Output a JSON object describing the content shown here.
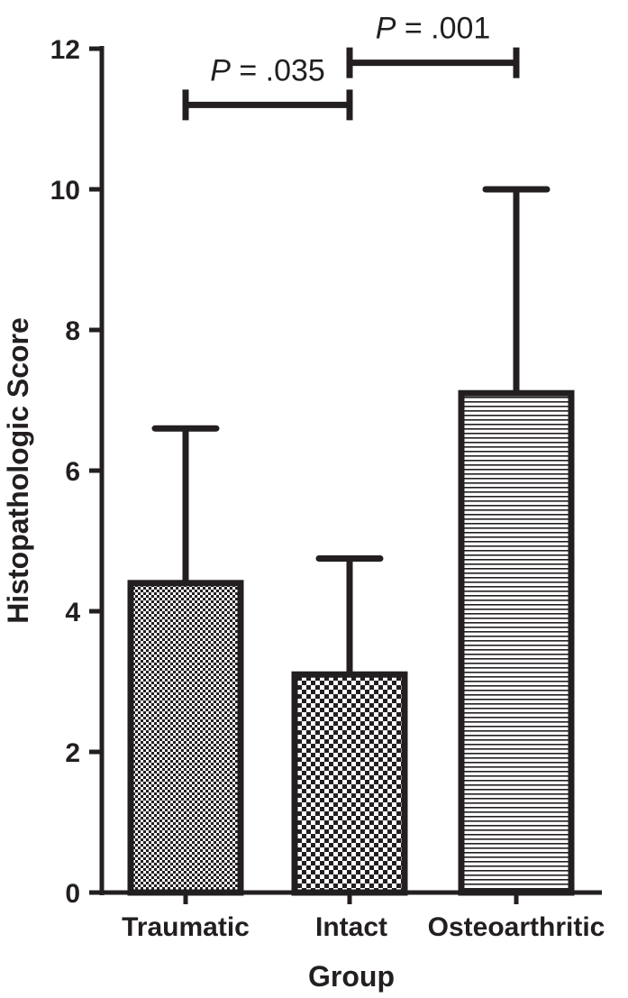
{
  "chart_data": {
    "type": "bar",
    "categories": [
      "Traumatic",
      "Intact",
      "Osteoarthritic"
    ],
    "values": [
      4.4,
      3.1,
      7.1
    ],
    "error_upper": [
      6.6,
      4.75,
      10.0
    ],
    "patterns": [
      "fine-checker",
      "checker",
      "horizontal-lines"
    ],
    "xlabel": "Group",
    "ylabel": "Histopathologic Score",
    "ylim": [
      0,
      12
    ],
    "yticks": [
      0,
      2,
      4,
      6,
      8,
      10,
      12
    ],
    "grid": false,
    "color": "#231f20",
    "comparisons": [
      {
        "from": "Traumatic",
        "to": "Intact",
        "p_symbol": "P",
        "p_value": " = .035",
        "bracket_y": 11.2
      },
      {
        "from": "Intact",
        "to": "Osteoarthritic",
        "p_symbol": "P",
        "p_value": " = .001",
        "bracket_y": 11.8
      }
    ]
  }
}
